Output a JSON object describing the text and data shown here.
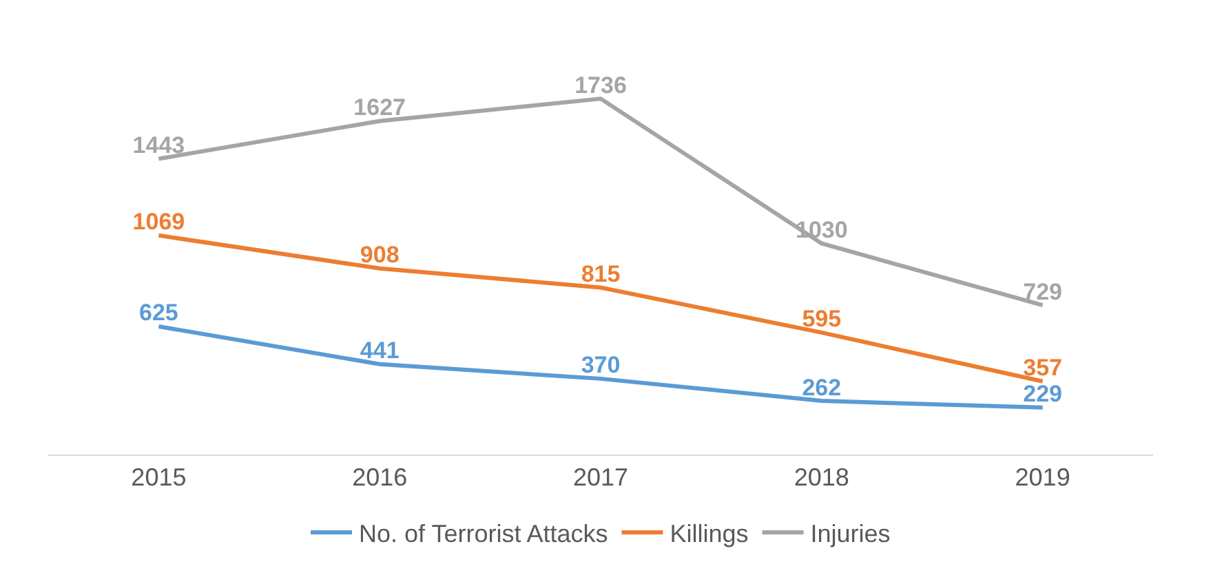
{
  "chart_data": {
    "type": "line",
    "categories": [
      "2015",
      "2016",
      "2017",
      "2018",
      "2019"
    ],
    "series": [
      {
        "name": "No. of Terrorist Attacks",
        "color": "#5b9bd5",
        "values": [
          625,
          441,
          370,
          262,
          229
        ]
      },
      {
        "name": "Killings",
        "color": "#ed7d31",
        "values": [
          1069,
          908,
          815,
          595,
          357
        ]
      },
      {
        "name": "Injuries",
        "color": "#a5a5a5",
        "values": [
          1443,
          1627,
          1736,
          1030,
          729
        ]
      }
    ],
    "data_labels": true,
    "legend": "bottom",
    "marker": "none",
    "line_style": "solid",
    "tick_labels": "x"
  }
}
